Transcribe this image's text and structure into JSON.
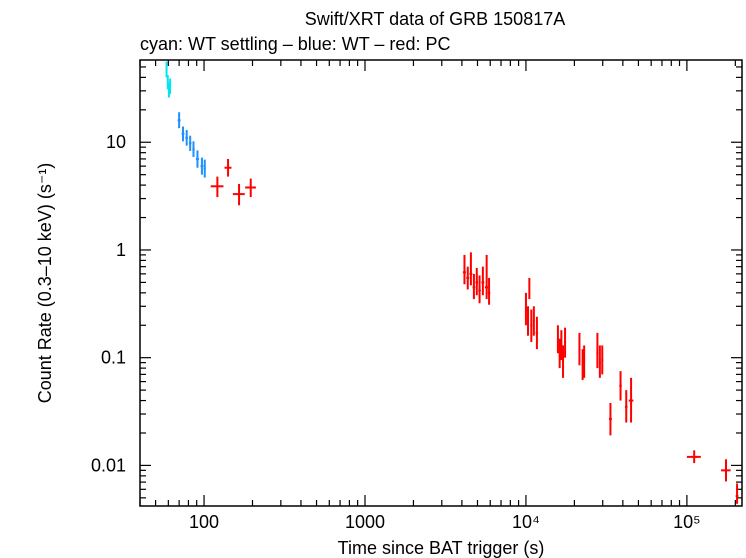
{
  "chart_data": {
    "type": "scatter",
    "title": "Swift/XRT data of GRB 150817A",
    "subtitle": "cyan: WT settling – blue: WT – red: PC",
    "xlabel": "Time since BAT trigger (s)",
    "ylabel": "Count Rate (0.3–10 keV) (s⁻¹)",
    "xscale": "log",
    "yscale": "log",
    "xlim": [
      40,
      220000
    ],
    "ylim": [
      0.0042,
      58
    ],
    "x_ticks": [
      {
        "value": 100,
        "label": "100"
      },
      {
        "value": 1000,
        "label": "1000"
      },
      {
        "value": 10000,
        "label": "10⁴"
      },
      {
        "value": 100000,
        "label": "10⁵"
      }
    ],
    "y_ticks": [
      {
        "value": 0.01,
        "label": "0.01"
      },
      {
        "value": 0.1,
        "label": "0.1"
      },
      {
        "value": 1,
        "label": "1"
      },
      {
        "value": 10,
        "label": "10"
      }
    ],
    "series": [
      {
        "name": "WT settling",
        "color": "#00e5ee",
        "points": [
          {
            "x": 58.5,
            "y": 48,
            "xerr": 0.5,
            "ylo": 40,
            "yhi": 56
          },
          {
            "x": 59.5,
            "y": 36,
            "xerr": 0.5,
            "ylo": 31,
            "yhi": 42
          },
          {
            "x": 60.5,
            "y": 31,
            "xerr": 0.5,
            "ylo": 26,
            "yhi": 36
          },
          {
            "x": 61.5,
            "y": 33,
            "xerr": 0.5,
            "ylo": 28,
            "yhi": 39
          }
        ]
      },
      {
        "name": "WT",
        "color": "#1e90ff",
        "points": [
          {
            "x": 70,
            "y": 16,
            "xerr": 1.5,
            "ylo": 13.5,
            "yhi": 19
          },
          {
            "x": 74,
            "y": 12,
            "xerr": 1.5,
            "ylo": 10.2,
            "yhi": 14
          },
          {
            "x": 78,
            "y": 11,
            "xerr": 1.5,
            "ylo": 9.3,
            "yhi": 13
          },
          {
            "x": 82,
            "y": 9.8,
            "xerr": 1.5,
            "ylo": 8.3,
            "yhi": 11.5
          },
          {
            "x": 86,
            "y": 8.6,
            "xerr": 1.5,
            "ylo": 7.3,
            "yhi": 10.2
          },
          {
            "x": 91,
            "y": 7.0,
            "xerr": 2,
            "ylo": 5.8,
            "yhi": 8.4
          },
          {
            "x": 97,
            "y": 6.0,
            "xerr": 2,
            "ylo": 5.0,
            "yhi": 7.2
          },
          {
            "x": 101,
            "y": 5.7,
            "xerr": 1.5,
            "ylo": 4.7,
            "yhi": 6.9
          }
        ]
      },
      {
        "name": "PC",
        "color": "#ff0000",
        "points": [
          {
            "x": 121,
            "y": 3.9,
            "xerr": 11,
            "ylo": 3.1,
            "yhi": 4.8
          },
          {
            "x": 141,
            "y": 5.8,
            "xerr": 7,
            "ylo": 4.8,
            "yhi": 7.0
          },
          {
            "x": 165,
            "y": 3.3,
            "xerr": 14,
            "ylo": 2.6,
            "yhi": 4.1
          },
          {
            "x": 195,
            "y": 3.8,
            "xerr": 15,
            "ylo": 3.1,
            "yhi": 4.6
          },
          {
            "x": 4150,
            "y": 0.62,
            "xerr": 90,
            "ylo": 0.48,
            "yhi": 0.9
          },
          {
            "x": 4350,
            "y": 0.55,
            "xerr": 90,
            "ylo": 0.43,
            "yhi": 0.7
          },
          {
            "x": 4550,
            "y": 0.6,
            "xerr": 90,
            "ylo": 0.47,
            "yhi": 0.95
          },
          {
            "x": 4750,
            "y": 0.45,
            "xerr": 90,
            "ylo": 0.35,
            "yhi": 0.6
          },
          {
            "x": 4950,
            "y": 0.5,
            "xerr": 90,
            "ylo": 0.38,
            "yhi": 0.68
          },
          {
            "x": 5150,
            "y": 0.42,
            "xerr": 90,
            "ylo": 0.32,
            "yhi": 0.58
          },
          {
            "x": 5400,
            "y": 0.5,
            "xerr": 110,
            "ylo": 0.38,
            "yhi": 0.7
          },
          {
            "x": 5700,
            "y": 0.45,
            "xerr": 140,
            "ylo": 0.35,
            "yhi": 0.9
          },
          {
            "x": 5900,
            "y": 0.4,
            "xerr": 100,
            "ylo": 0.31,
            "yhi": 0.55
          },
          {
            "x": 10000,
            "y": 0.28,
            "xerr": 130,
            "ylo": 0.2,
            "yhi": 0.4
          },
          {
            "x": 10300,
            "y": 0.22,
            "xerr": 130,
            "ylo": 0.16,
            "yhi": 0.3
          },
          {
            "x": 10500,
            "y": 0.45,
            "xerr": 100,
            "ylo": 0.35,
            "yhi": 0.55
          },
          {
            "x": 10800,
            "y": 0.2,
            "xerr": 150,
            "ylo": 0.14,
            "yhi": 0.28
          },
          {
            "x": 11200,
            "y": 0.22,
            "xerr": 150,
            "ylo": 0.16,
            "yhi": 0.3
          },
          {
            "x": 11700,
            "y": 0.17,
            "xerr": 200,
            "ylo": 0.12,
            "yhi": 0.24
          },
          {
            "x": 15800,
            "y": 0.15,
            "xerr": 200,
            "ylo": 0.11,
            "yhi": 0.2
          },
          {
            "x": 16200,
            "y": 0.11,
            "xerr": 200,
            "ylo": 0.08,
            "yhi": 0.15
          },
          {
            "x": 16600,
            "y": 0.13,
            "xerr": 200,
            "ylo": 0.095,
            "yhi": 0.18
          },
          {
            "x": 17000,
            "y": 0.09,
            "xerr": 200,
            "ylo": 0.065,
            "yhi": 0.13
          },
          {
            "x": 17500,
            "y": 0.14,
            "xerr": 250,
            "ylo": 0.1,
            "yhi": 0.19
          },
          {
            "x": 21500,
            "y": 0.12,
            "xerr": 300,
            "ylo": 0.085,
            "yhi": 0.17
          },
          {
            "x": 22500,
            "y": 0.085,
            "xerr": 300,
            "ylo": 0.062,
            "yhi": 0.12
          },
          {
            "x": 23000,
            "y": 0.09,
            "xerr": 250,
            "ylo": 0.065,
            "yhi": 0.13
          },
          {
            "x": 27800,
            "y": 0.11,
            "xerr": 400,
            "ylo": 0.08,
            "yhi": 0.17
          },
          {
            "x": 28800,
            "y": 0.09,
            "xerr": 400,
            "ylo": 0.065,
            "yhi": 0.13
          },
          {
            "x": 29800,
            "y": 0.095,
            "xerr": 400,
            "ylo": 0.07,
            "yhi": 0.13
          },
          {
            "x": 33500,
            "y": 0.027,
            "xerr": 700,
            "ylo": 0.019,
            "yhi": 0.038
          },
          {
            "x": 38700,
            "y": 0.055,
            "xerr": 700,
            "ylo": 0.04,
            "yhi": 0.075
          },
          {
            "x": 42000,
            "y": 0.035,
            "xerr": 800,
            "ylo": 0.025,
            "yhi": 0.05
          },
          {
            "x": 45000,
            "y": 0.04,
            "xerr": 1500,
            "ylo": 0.025,
            "yhi": 0.065
          },
          {
            "x": 111000,
            "y": 0.012,
            "xerr": 11000,
            "ylo": 0.0105,
            "yhi": 0.0138
          },
          {
            "x": 175000,
            "y": 0.009,
            "xerr": 12000,
            "ylo": 0.0071,
            "yhi": 0.0114
          },
          {
            "x": 205000,
            "y": 0.0052,
            "xerr": 4000,
            "ylo": 0.0044,
            "yhi": 0.0068
          }
        ]
      }
    ]
  }
}
